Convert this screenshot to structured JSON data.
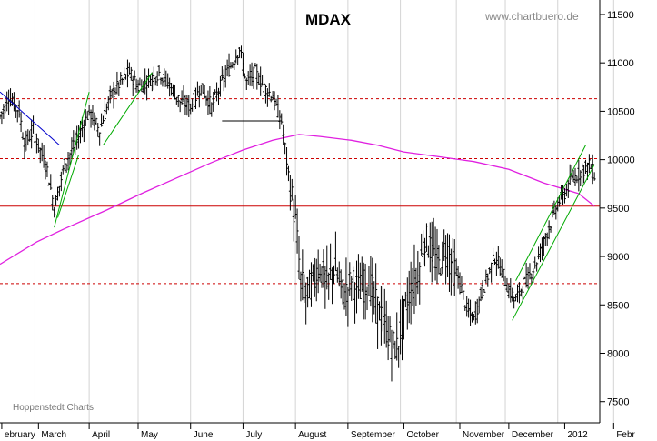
{
  "chart_data": {
    "type": "ohlc",
    "title": "MDAX",
    "watermark": "www.chartbuero.de",
    "source": "Hoppenstedt Charts",
    "ylim": [
      7300,
      11650
    ],
    "y_ticks": [
      7500,
      8000,
      8500,
      9000,
      9500,
      10000,
      10500,
      11000,
      11500
    ],
    "x_labels": [
      {
        "label": "ebruary",
        "day": -20
      },
      {
        "label": "March",
        "day": 1
      },
      {
        "label": "April",
        "day": 30
      },
      {
        "label": "May",
        "day": 58
      },
      {
        "label": "June",
        "day": 88
      },
      {
        "label": "July",
        "day": 118
      },
      {
        "label": "August",
        "day": 148
      },
      {
        "label": "September",
        "day": 178
      },
      {
        "label": "October",
        "day": 210
      },
      {
        "label": "November",
        "day": 242
      },
      {
        "label": "December",
        "day": 270
      },
      {
        "label": "2012",
        "day": 302
      },
      {
        "label": "Febr",
        "day": 330
      }
    ],
    "month_boundaries": [
      -1,
      30,
      58,
      88,
      118,
      148,
      178,
      208,
      240,
      268,
      298,
      330
    ],
    "anchors": [
      [
        -21,
        10450
      ],
      [
        -16,
        10650
      ],
      [
        -10,
        10500
      ],
      [
        -7,
        10150
      ],
      [
        -2,
        10300
      ],
      [
        1,
        10150
      ],
      [
        6,
        9900
      ],
      [
        10,
        9500
      ],
      [
        16,
        9950
      ],
      [
        23,
        10200
      ],
      [
        30,
        10500
      ],
      [
        36,
        10300
      ],
      [
        42,
        10650
      ],
      [
        48,
        10800
      ],
      [
        53,
        10900
      ],
      [
        58,
        10750
      ],
      [
        64,
        10820
      ],
      [
        70,
        10900
      ],
      [
        75,
        10800
      ],
      [
        82,
        10600
      ],
      [
        88,
        10550
      ],
      [
        94,
        10750
      ],
      [
        100,
        10550
      ],
      [
        106,
        10800
      ],
      [
        112,
        11000
      ],
      [
        116,
        11150
      ],
      [
        120,
        10800
      ],
      [
        125,
        10900
      ],
      [
        130,
        10750
      ],
      [
        135,
        10650
      ],
      [
        140,
        10400
      ],
      [
        144,
        9850
      ],
      [
        148,
        9350
      ],
      [
        151,
        8750
      ],
      [
        154,
        8600
      ],
      [
        158,
        8750
      ],
      [
        162,
        8900
      ],
      [
        166,
        8700
      ],
      [
        170,
        8900
      ],
      [
        176,
        8600
      ],
      [
        180,
        8750
      ],
      [
        185,
        8650
      ],
      [
        190,
        8750
      ],
      [
        194,
        8500
      ],
      [
        198,
        8350
      ],
      [
        203,
        8100
      ],
      [
        206,
        8050
      ],
      [
        210,
        8400
      ],
      [
        214,
        8650
      ],
      [
        218,
        8800
      ],
      [
        222,
        9200
      ],
      [
        226,
        9050
      ],
      [
        230,
        8900
      ],
      [
        234,
        9100
      ],
      [
        238,
        8900
      ],
      [
        242,
        8750
      ],
      [
        246,
        8450
      ],
      [
        250,
        8350
      ],
      [
        254,
        8600
      ],
      [
        258,
        8800
      ],
      [
        262,
        9000
      ],
      [
        266,
        8850
      ],
      [
        270,
        8650
      ],
      [
        274,
        8550
      ],
      [
        278,
        8700
      ],
      [
        282,
        8800
      ],
      [
        286,
        8950
      ],
      [
        290,
        9150
      ],
      [
        294,
        9350
      ],
      [
        298,
        9550
      ],
      [
        302,
        9650
      ],
      [
        306,
        9800
      ],
      [
        310,
        9850
      ],
      [
        313,
        9900
      ],
      [
        316,
        9950
      ],
      [
        319,
        9850
      ]
    ],
    "moving_average": {
      "color": "#e020e0",
      "points": [
        [
          -21,
          8920
        ],
        [
          0,
          9150
        ],
        [
          15,
          9280
        ],
        [
          40,
          9480
        ],
        [
          60,
          9650
        ],
        [
          80,
          9810
        ],
        [
          100,
          9970
        ],
        [
          118,
          10100
        ],
        [
          135,
          10200
        ],
        [
          150,
          10260
        ],
        [
          162,
          10240
        ],
        [
          180,
          10200
        ],
        [
          195,
          10150
        ],
        [
          210,
          10080
        ],
        [
          230,
          10030
        ],
        [
          250,
          9980
        ],
        [
          270,
          9900
        ],
        [
          290,
          9760
        ],
        [
          310,
          9650
        ],
        [
          319,
          9520
        ]
      ]
    },
    "horizontal_lines": [
      {
        "value": 10630,
        "style": "dashed",
        "color": "#cc0000"
      },
      {
        "value": 10010,
        "style": "dashed",
        "color": "#cc0000"
      },
      {
        "value": 9520,
        "style": "solid",
        "color": "#cc0000"
      },
      {
        "value": 8720,
        "style": "dashed",
        "color": "#cc0000"
      }
    ],
    "segments": [
      {
        "color": "#0000cc",
        "points": [
          [
            -21,
            10700
          ],
          [
            13,
            10150
          ]
        ]
      },
      {
        "color": "#00aa00",
        "points": [
          [
            10,
            9300
          ],
          [
            30,
            10700
          ]
        ]
      },
      {
        "color": "#00aa00",
        "points": [
          [
            12,
            9400
          ],
          [
            24,
            10050
          ]
        ]
      },
      {
        "color": "#00aa00",
        "points": [
          [
            38,
            10150
          ],
          [
            66,
            10900
          ]
        ]
      },
      {
        "color": "#000000",
        "points": [
          [
            106,
            10400
          ],
          [
            140,
            10400
          ]
        ]
      },
      {
        "color": "#00aa00",
        "points": [
          [
            272,
            8340
          ],
          [
            319,
            9950
          ]
        ]
      },
      {
        "color": "#00aa00",
        "points": [
          [
            274,
            8750
          ],
          [
            314,
            10150
          ]
        ]
      }
    ]
  }
}
